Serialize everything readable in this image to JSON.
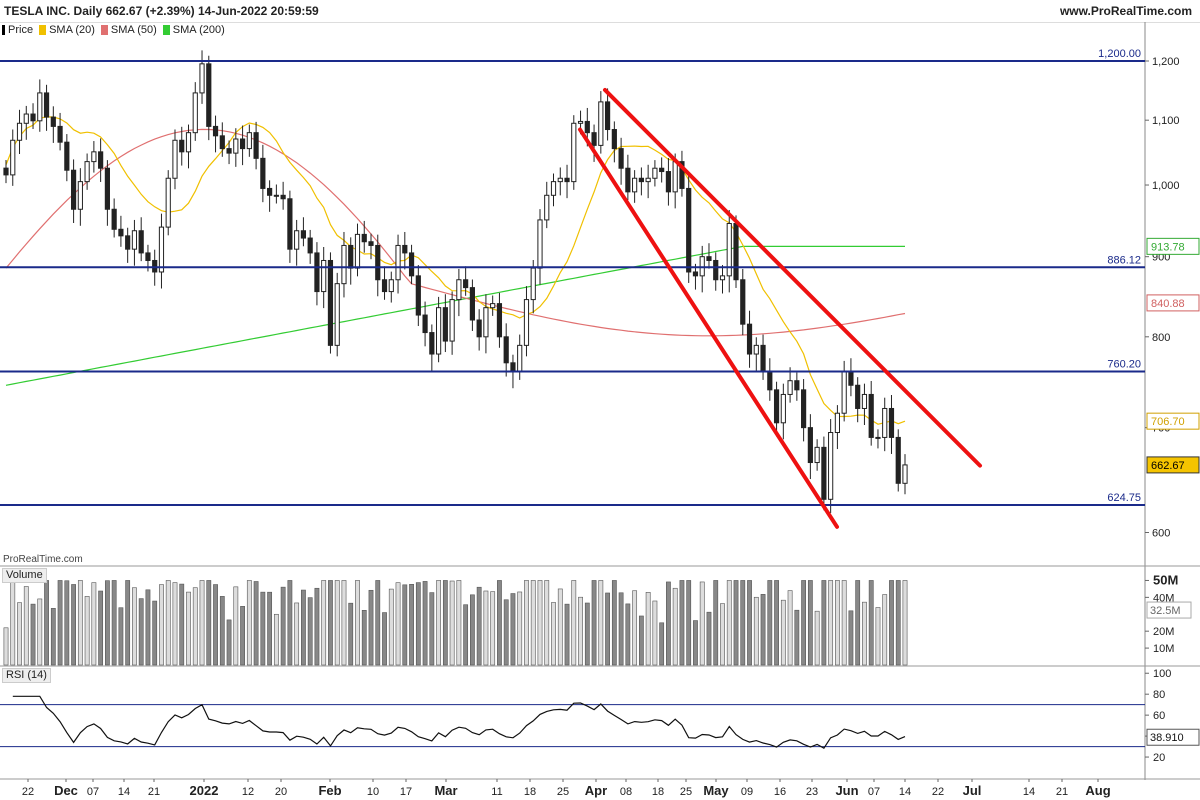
{
  "header": {
    "title": "TESLA INC. Daily 662.67 (+2.39%) 14-Jun-2022 20:59:59",
    "site": "www.ProRealTime.com"
  },
  "legend": [
    {
      "label": "Price",
      "color": "#000000"
    },
    {
      "label": "SMA (20)",
      "color": "#f0c000"
    },
    {
      "label": "SMA (50)",
      "color": "#e07070"
    },
    {
      "label": "SMA (200)",
      "color": "#33cc33"
    }
  ],
  "watermark": "ProRealTime.com",
  "volume_label": "Volume",
  "rsi_label": "RSI (14)",
  "chart_data": {
    "type": "candlestick",
    "price_axis": {
      "ticks": [
        "1,200",
        "1,100",
        "1,000",
        "900",
        "800",
        "700",
        "600"
      ],
      "scale": "log"
    },
    "horizontal_levels": [
      "1,200.00",
      "886.12",
      "760.20",
      "624.75"
    ],
    "last_values": {
      "price": "662.67",
      "sma20": "706.70",
      "sma50": "840.88",
      "sma200": "913.78"
    },
    "time_axis": [
      "22",
      "Dec",
      "07",
      "14",
      "21",
      "2022",
      "12",
      "20",
      "Feb",
      "10",
      "17",
      "Mar",
      "11",
      "18",
      "25",
      "Apr",
      "08",
      "18",
      "25",
      "May",
      "09",
      "16",
      "23",
      "Jun",
      "07",
      "14",
      "22",
      "Jul",
      "14",
      "21",
      "Aug"
    ],
    "trendlines": [
      {
        "from": [
          "Mar 30",
          1085
        ],
        "to": [
          "May 26",
          605
        ]
      },
      {
        "from": [
          "Apr 01",
          1150
        ],
        "to": [
          "Jun 22",
          662
        ]
      }
    ],
    "closes": [
      1015,
      1068,
      1095,
      1110,
      1099,
      1145,
      1105,
      1090,
      1065,
      1022,
      965,
      1005,
      1035,
      1050,
      1025,
      965,
      937,
      928,
      910,
      935,
      905,
      895,
      880,
      940,
      1010,
      1068,
      1050,
      1080,
      1145,
      1195,
      1090,
      1075,
      1055,
      1048,
      1070,
      1055,
      1080,
      1040,
      995,
      985,
      985,
      980,
      910,
      935,
      925,
      905,
      855,
      895,
      790,
      865,
      915,
      885,
      930,
      920,
      915,
      870,
      855,
      870,
      915,
      905,
      875,
      826,
      805,
      780,
      835,
      795,
      845,
      870,
      860,
      820,
      800,
      835,
      840,
      800,
      770,
      760,
      790,
      845,
      885,
      950,
      985,
      1005,
      1010,
      1005,
      1095,
      1098,
      1080,
      1060,
      1130,
      1085,
      1055,
      1025,
      990,
      1010,
      1005,
      1010,
      1025,
      1020,
      990,
      1035,
      995,
      880,
      875,
      900,
      895,
      870,
      875,
      945,
      870,
      815,
      780,
      790,
      760,
      740,
      705,
      735,
      750,
      740,
      700,
      665,
      680,
      630,
      695,
      715,
      760,
      745,
      720,
      735,
      690,
      690,
      720,
      690,
      645,
      662.67
    ],
    "sma20": {
      "start": 1030,
      "end": 706.7
    },
    "sma50": {
      "start": 885,
      "end": 840.88
    },
    "sma200": {
      "start": 745,
      "end": 913.78
    },
    "volume_axis": [
      "50M",
      "40M",
      "32.5M",
      "20M",
      "10M"
    ],
    "volume_last": "32.5M",
    "rsi_axis": [
      "100",
      "80",
      "60",
      "40",
      "20"
    ],
    "rsi_levels": [
      70,
      30
    ],
    "rsi_last": "38.910"
  }
}
